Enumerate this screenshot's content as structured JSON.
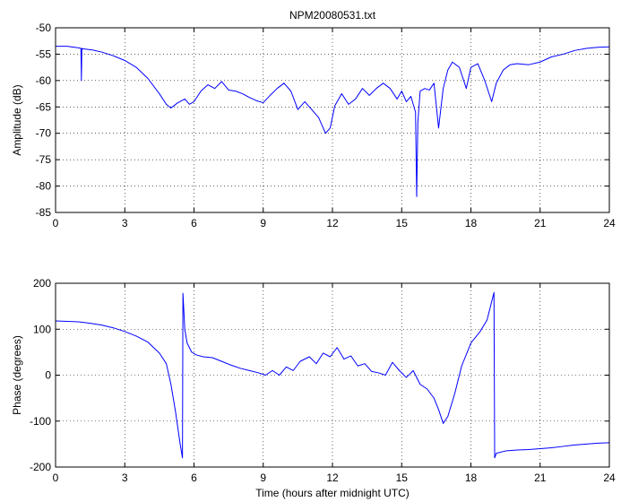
{
  "colors": {
    "line": "#0000ff",
    "axes": "#000000",
    "grid": "#000000",
    "background": "#ffffff"
  },
  "chart_data": [
    {
      "type": "line",
      "title": "NPM20080531.txt",
      "xlabel": "",
      "ylabel": "Amplitude (dB)",
      "xlim": [
        0,
        24
      ],
      "ylim": [
        -85,
        -50
      ],
      "xticks": [
        0,
        3,
        6,
        9,
        12,
        15,
        18,
        21,
        24
      ],
      "yticks": [
        -85,
        -80,
        -75,
        -70,
        -65,
        -60,
        -55,
        -50
      ],
      "xtick_labels": [
        "0",
        "3",
        "6",
        "9",
        "12",
        "15",
        "18",
        "21",
        "24"
      ],
      "ytick_labels": [
        "-85",
        "-80",
        "-75",
        "-70",
        "-65",
        "-60",
        "-55",
        "-50"
      ],
      "grid": true,
      "series": [
        {
          "x": [
            0,
            0.5,
            1,
            1.1,
            1.12,
            1.14,
            1.2,
            1.6,
            2,
            2.5,
            3,
            3.5,
            4,
            4.5,
            4.8,
            5,
            5.3,
            5.6,
            5.8,
            6,
            6.3,
            6.6,
            6.9,
            7.2,
            7.5,
            7.8,
            8.1,
            8.4,
            8.7,
            9,
            9.3,
            9.6,
            9.9,
            10.2,
            10.5,
            10.8,
            11.1,
            11.4,
            11.7,
            11.9,
            12.1,
            12.4,
            12.7,
            13,
            13.3,
            13.6,
            13.9,
            14.2,
            14.5,
            14.8,
            15,
            15.2,
            15.4,
            15.6,
            15.65,
            15.7,
            15.8,
            16,
            16.2,
            16.4,
            16.6,
            16.8,
            17,
            17.2,
            17.5,
            17.8,
            18,
            18.3,
            18.6,
            18.9,
            19.1,
            19.4,
            19.7,
            20,
            20.5,
            21,
            21.5,
            22,
            22.5,
            23,
            23.5,
            24
          ],
          "y": [
            -53.5,
            -53.5,
            -53.8,
            -53.9,
            -60,
            -53.9,
            -54,
            -54.2,
            -54.6,
            -55.3,
            -56.2,
            -57.5,
            -59.6,
            -62.5,
            -64.5,
            -65.2,
            -64.2,
            -63.5,
            -64.5,
            -64,
            -62,
            -60.8,
            -61.5,
            -60.2,
            -61.8,
            -62,
            -62.5,
            -63.2,
            -63.8,
            -64.2,
            -62.8,
            -61.5,
            -60.5,
            -62,
            -65.5,
            -64,
            -65.5,
            -67,
            -70,
            -69,
            -64.8,
            -62.5,
            -64.5,
            -63.5,
            -61.5,
            -62.8,
            -61.5,
            -60.5,
            -61.5,
            -63.5,
            -62,
            -64,
            -63,
            -66,
            -82,
            -68,
            -62,
            -61.5,
            -61.8,
            -60.5,
            -69,
            -61.5,
            -58,
            -56.5,
            -57.5,
            -61.5,
            -57.5,
            -56.8,
            -60,
            -64,
            -60.5,
            -58,
            -57,
            -56.8,
            -57,
            -56.5,
            -55.5,
            -55,
            -54.3,
            -53.9,
            -53.7,
            -53.6
          ]
        }
      ]
    },
    {
      "type": "line",
      "title": "",
      "xlabel": "Time (hours after midnight UTC)",
      "ylabel": "Phase (degrees)",
      "xlim": [
        0,
        24
      ],
      "ylim": [
        -200,
        200
      ],
      "xticks": [
        0,
        3,
        6,
        9,
        12,
        15,
        18,
        21,
        24
      ],
      "yticks": [
        -200,
        -100,
        0,
        100,
        200
      ],
      "xtick_labels": [
        "0",
        "3",
        "6",
        "9",
        "12",
        "15",
        "18",
        "21",
        "24"
      ],
      "ytick_labels": [
        "-200",
        "-100",
        "0",
        "100",
        "200"
      ],
      "grid": true,
      "series": [
        {
          "x": [
            0,
            0.5,
            1,
            1.5,
            2,
            2.5,
            3,
            3.5,
            4,
            4.5,
            4.8,
            5,
            5.2,
            5.4,
            5.5,
            5.52,
            5.55,
            5.6,
            5.7,
            5.9,
            6.1,
            6.4,
            6.8,
            7.2,
            7.6,
            8,
            8.4,
            8.8,
            9.1,
            9.4,
            9.7,
            10,
            10.3,
            10.6,
            11,
            11.3,
            11.6,
            11.9,
            12.2,
            12.5,
            12.8,
            13.1,
            13.4,
            13.7,
            14,
            14.3,
            14.6,
            14.9,
            15.2,
            15.5,
            15.8,
            16.1,
            16.4,
            16.6,
            16.8,
            17,
            17.3,
            17.6,
            18,
            18.4,
            18.7,
            19,
            19.03,
            19.1,
            19.5,
            20,
            20.5,
            21,
            21.5,
            22,
            22.5,
            23,
            23.5,
            24
          ],
          "y": [
            118,
            117,
            116,
            113,
            109,
            103,
            95,
            85,
            72,
            48,
            25,
            -20,
            -80,
            -150,
            -180,
            178,
            150,
            100,
            70,
            50,
            44,
            40,
            38,
            30,
            22,
            15,
            10,
            5,
            0,
            10,
            0,
            18,
            10,
            30,
            40,
            25,
            48,
            40,
            60,
            35,
            42,
            20,
            25,
            8,
            5,
            0,
            28,
            10,
            -5,
            10,
            -20,
            -30,
            -50,
            -75,
            -105,
            -90,
            -40,
            20,
            70,
            95,
            120,
            180,
            -180,
            -170,
            -165,
            -163,
            -162,
            -160,
            -158,
            -155,
            -152,
            -150,
            -148,
            -147
          ]
        }
      ]
    }
  ]
}
